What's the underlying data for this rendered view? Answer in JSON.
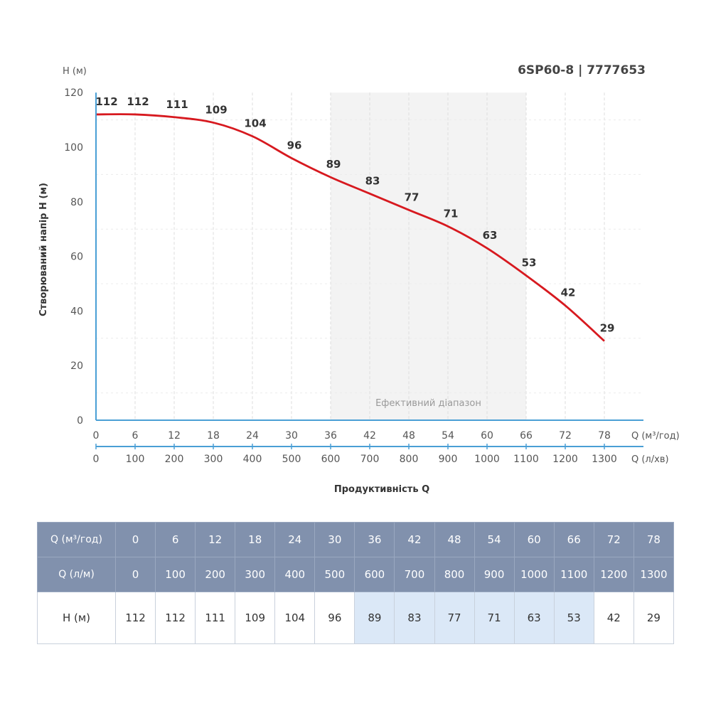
{
  "chart_data": {
    "type": "line",
    "title": "6SP60-8 | 7777653",
    "ylabel": "Створюваний напір H (м)",
    "yunit": "H (м)",
    "xlabel": "Продуктивність Q",
    "x_unit_primary": "Q (м³/год)",
    "x_unit_secondary": "Q (л/хв)",
    "ylim": [
      0,
      120
    ],
    "yticks": [
      0,
      20,
      40,
      60,
      80,
      100,
      120
    ],
    "xlim": [
      0,
      84
    ],
    "x": [
      0,
      6,
      12,
      18,
      24,
      30,
      36,
      42,
      48,
      54,
      60,
      66,
      72,
      78
    ],
    "x_secondary": [
      0,
      100,
      200,
      300,
      400,
      500,
      600,
      700,
      800,
      900,
      1000,
      1100,
      1200,
      1300
    ],
    "series": [
      {
        "values": [
          112,
          112,
          111,
          109,
          104,
          96,
          89,
          83,
          77,
          71,
          63,
          53,
          42,
          29
        ],
        "color": "#d7191f"
      }
    ],
    "efficient_range": {
      "label": "Ефективний діапазон",
      "from": 36,
      "to": 66
    },
    "grid": "vertical-dashed"
  },
  "table": {
    "row_labels": [
      "Q (м³/год)",
      "Q (л/м)",
      "H (м)"
    ],
    "q_m3h": [
      "0",
      "6",
      "12",
      "18",
      "24",
      "30",
      "36",
      "42",
      "48",
      "54",
      "60",
      "66",
      "72",
      "78"
    ],
    "q_lm": [
      "0",
      "100",
      "200",
      "300",
      "400",
      "500",
      "600",
      "700",
      "800",
      "900",
      "1000",
      "1100",
      "1200",
      "1300"
    ],
    "h_m": [
      "112",
      "112",
      "111",
      "109",
      "104",
      "96",
      "89",
      "83",
      "77",
      "71",
      "63",
      "53",
      "42",
      "29"
    ],
    "highlighted_range": {
      "from": 36,
      "to": 66
    }
  },
  "colors": {
    "curve": "#d7191f",
    "axis": "#4a9fd5",
    "band": "#f3f3f3",
    "table_header": "#8191ad",
    "table_highlight": "#dbe8f7"
  }
}
